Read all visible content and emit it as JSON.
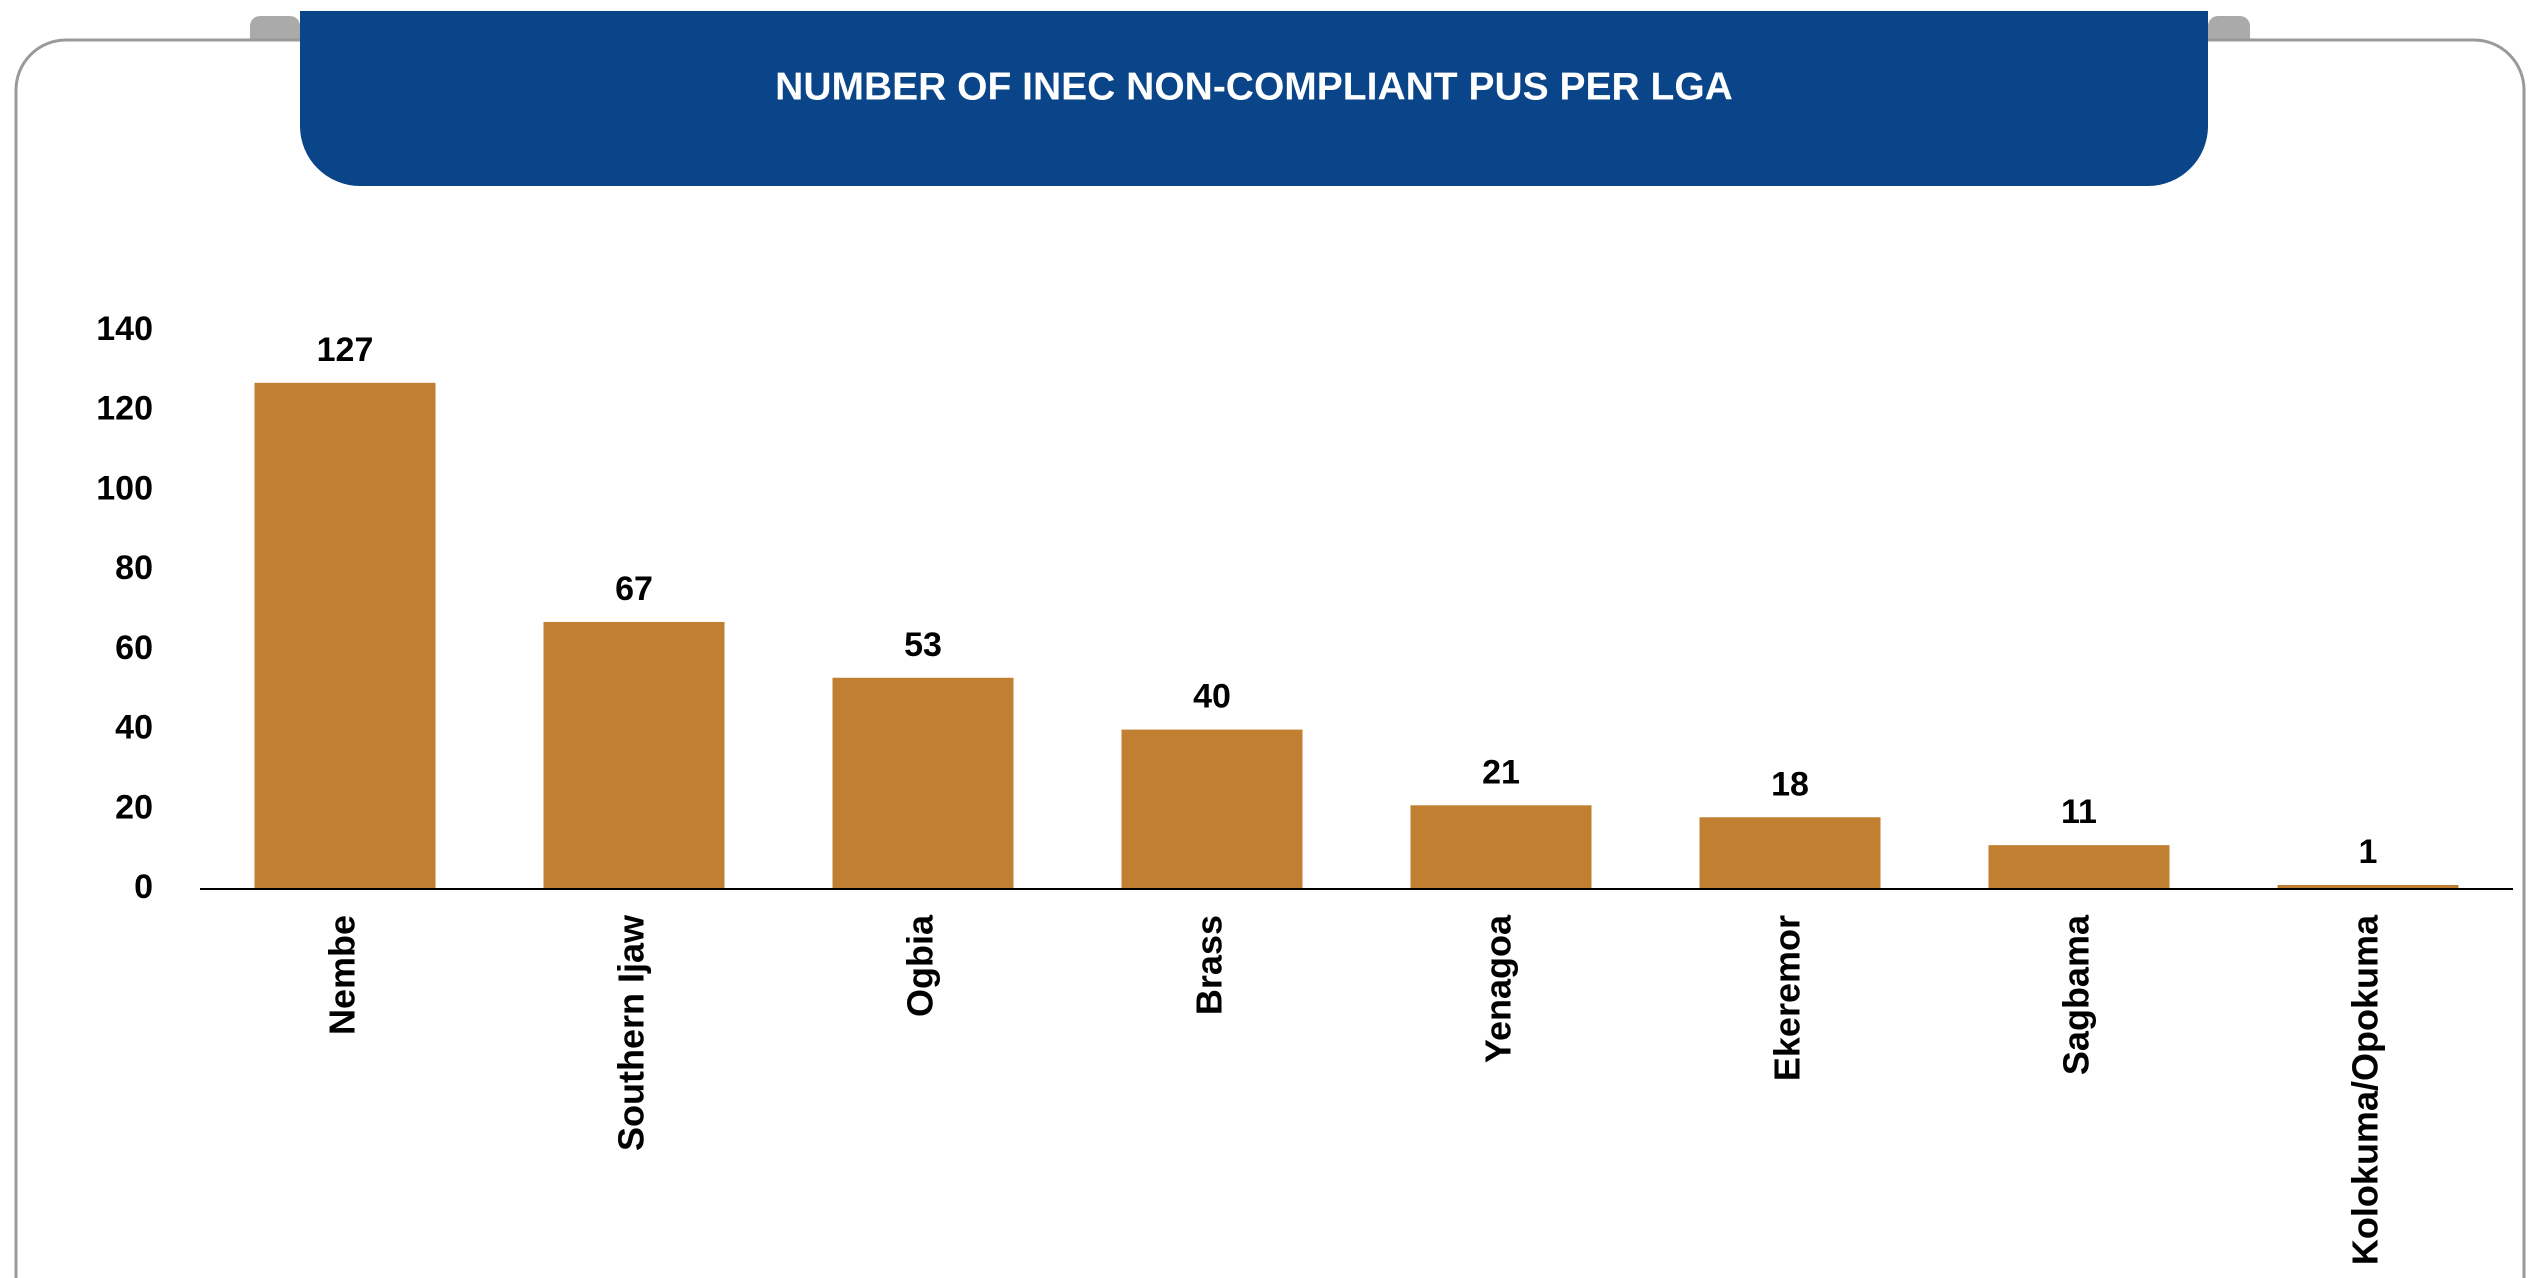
{
  "chart_data": {
    "type": "bar",
    "title": "NUMBER OF INEC NON-COMPLIANT PUS PER LGA",
    "categories": [
      "Nembe",
      "Southern Ijaw",
      "Ogbia",
      "Brass",
      "Yenagoa",
      "Ekeremor",
      "Sagbama",
      "Kolokuma/Opokuma"
    ],
    "values": [
      127,
      67,
      53,
      40,
      21,
      18,
      11,
      1
    ],
    "color": "#c07f31",
    "ylim": [
      0,
      140
    ],
    "yticks": [
      0,
      20,
      40,
      60,
      80,
      100,
      120,
      140
    ],
    "grid": false
  }
}
